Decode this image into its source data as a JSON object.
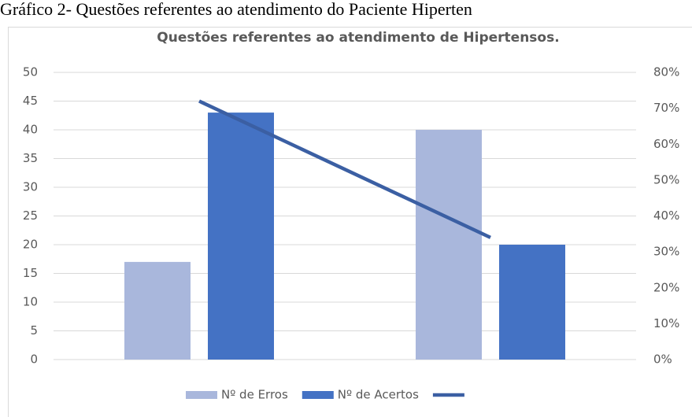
{
  "caption": "Gráfico 2- Questões referentes ao atendimento do Paciente Hiperten",
  "chart_data": {
    "type": "bar",
    "title": "Questões referentes ao atendimento de Hipertensos.",
    "categories": [
      null,
      null
    ],
    "series": [
      {
        "name": "Nº de Erros",
        "color": "#a9b7dc",
        "values": [
          17,
          40
        ]
      },
      {
        "name": "Nº de Acertos",
        "color": "#4472c4",
        "values": [
          43,
          20
        ]
      },
      {
        "type": "line",
        "axis": "y2",
        "color": "#3b5fa3",
        "values": [
          72,
          34
        ]
      }
    ],
    "ylim": [
      0,
      50
    ],
    "yticks": [
      0,
      5,
      10,
      15,
      20,
      25,
      30,
      35,
      40,
      45,
      50
    ],
    "y2lim": [
      0,
      80
    ],
    "y2ticks": [
      {
        "value": 0,
        "label": "0%"
      },
      {
        "value": 10,
        "label": "10%"
      },
      {
        "value": 20,
        "label": "20%"
      },
      {
        "value": 30,
        "label": "30%"
      },
      {
        "value": 40,
        "label": "40%"
      },
      {
        "value": 50,
        "label": "50%"
      },
      {
        "value": 60,
        "label": "60%"
      },
      {
        "value": 70,
        "label": "70%"
      },
      {
        "value": 80,
        "label": "80%"
      }
    ],
    "grid": true,
    "legend": "bottom"
  }
}
